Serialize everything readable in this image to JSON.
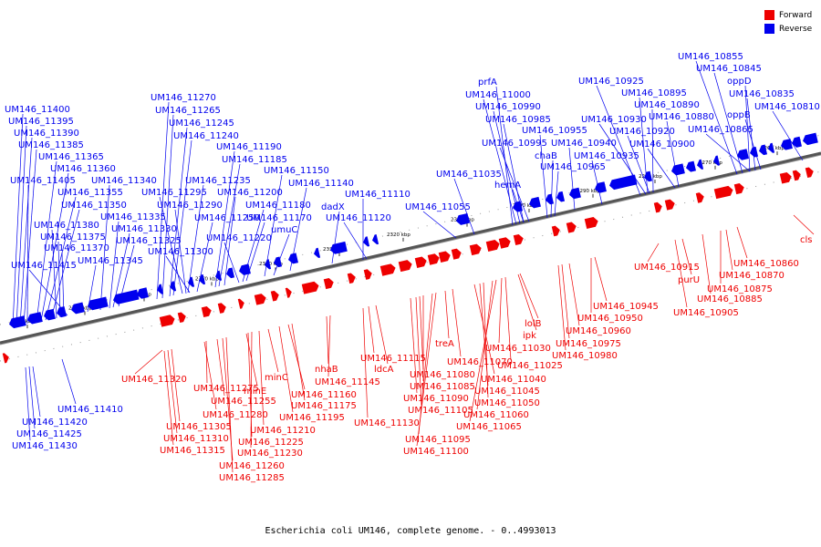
{
  "caption": "Escherichia coli UM146, complete genome. - 0..4993013",
  "legend": [
    {
      "label": "Forward",
      "color": "#ee0000"
    },
    {
      "label": "Reverse",
      "color": "#0000ee"
    }
  ],
  "colors": {
    "forward": "#ee0000",
    "reverse": "#0000ee",
    "axis": "#555555"
  },
  "ticks": [
    "2380 kbp",
    "2370 kbp",
    "2360 kbp",
    "2350 kbp",
    "2340 kbp",
    "2330 kbp",
    "2320 kbp",
    "2310 kbp",
    "2300 kbp",
    "2290 kbp",
    "2280 kbp",
    "2270 kbp",
    "2260 kbp"
  ],
  "reverse_labels": [
    "UM146_11400",
    "UM146_11395",
    "UM146_11390",
    "UM146_11385",
    "UM146_11365",
    "UM146_11360",
    "UM146_11405",
    "UM146_11340",
    "UM146_11355",
    "UM146_11350",
    "UM146_11335",
    "UM146_11380",
    "UM146_11330",
    "UM146_11375",
    "UM146_11325",
    "UM146_11370",
    "UM146_11345",
    "UM146_11415",
    "UM146_11270",
    "UM146_11265",
    "UM146_11245",
    "UM146_11240",
    "UM146_11190",
    "UM146_11185",
    "UM146_11150",
    "UM146_11235",
    "UM146_11140",
    "UM146_11295",
    "UM146_11200",
    "UM146_11110",
    "UM146_11290",
    "UM146_11180",
    "dadX",
    "UM146_11250",
    "UM146_11170",
    "UM146_11120",
    "umuC",
    "UM146_11220",
    "UM146_11300",
    "UM146_11055",
    "UM146_11035",
    "prfA",
    "UM146_11000",
    "UM146_10990",
    "UM146_10985",
    "UM146_10955",
    "UM146_10995",
    "chaB",
    "UM146_10965",
    "hemA",
    "UM146_10925",
    "UM146_10895",
    "UM146_10890",
    "UM146_10930",
    "UM146_10920",
    "UM146_10940",
    "UM146_10900",
    "UM146_10935",
    "UM146_10880",
    "UM146_10855",
    "UM146_10845",
    "oppD",
    "UM146_10835",
    "UM146_10810",
    "oppB",
    "UM146_10865",
    "UM146_11410",
    "UM146_11420",
    "UM146_11425",
    "UM146_11430"
  ],
  "forward_labels": [
    "UM146_11320",
    "UM146_11275",
    "minE",
    "UM146_11255",
    "minC",
    "UM146_11280",
    "UM146_11305",
    "UM146_11310",
    "UM146_11315",
    "UM146_11260",
    "UM146_11285",
    "UM146_11175",
    "UM146_11160",
    "UM146_11195",
    "UM146_11210",
    "UM146_11225",
    "UM146_11230",
    "nhaB",
    "UM146_11145",
    "UM146_11130",
    "UM146_11115",
    "ldcA",
    "UM146_11080",
    "UM146_11085",
    "UM146_11090",
    "UM146_11105",
    "UM146_11095",
    "UM146_11100",
    "treA",
    "UM146_11070",
    "UM146_11040",
    "UM146_11045",
    "UM146_11050",
    "UM146_11060",
    "UM146_11065",
    "UM146_11030",
    "UM146_11025",
    "ipk",
    "lolB",
    "UM146_10980",
    "UM146_10975",
    "UM146_10960",
    "UM146_10950",
    "UM146_10945",
    "purU",
    "UM146_10915",
    "UM146_10885",
    "UM146_10905",
    "UM146_10875",
    "UM146_10870",
    "UM146_10860",
    "cls"
  ]
}
